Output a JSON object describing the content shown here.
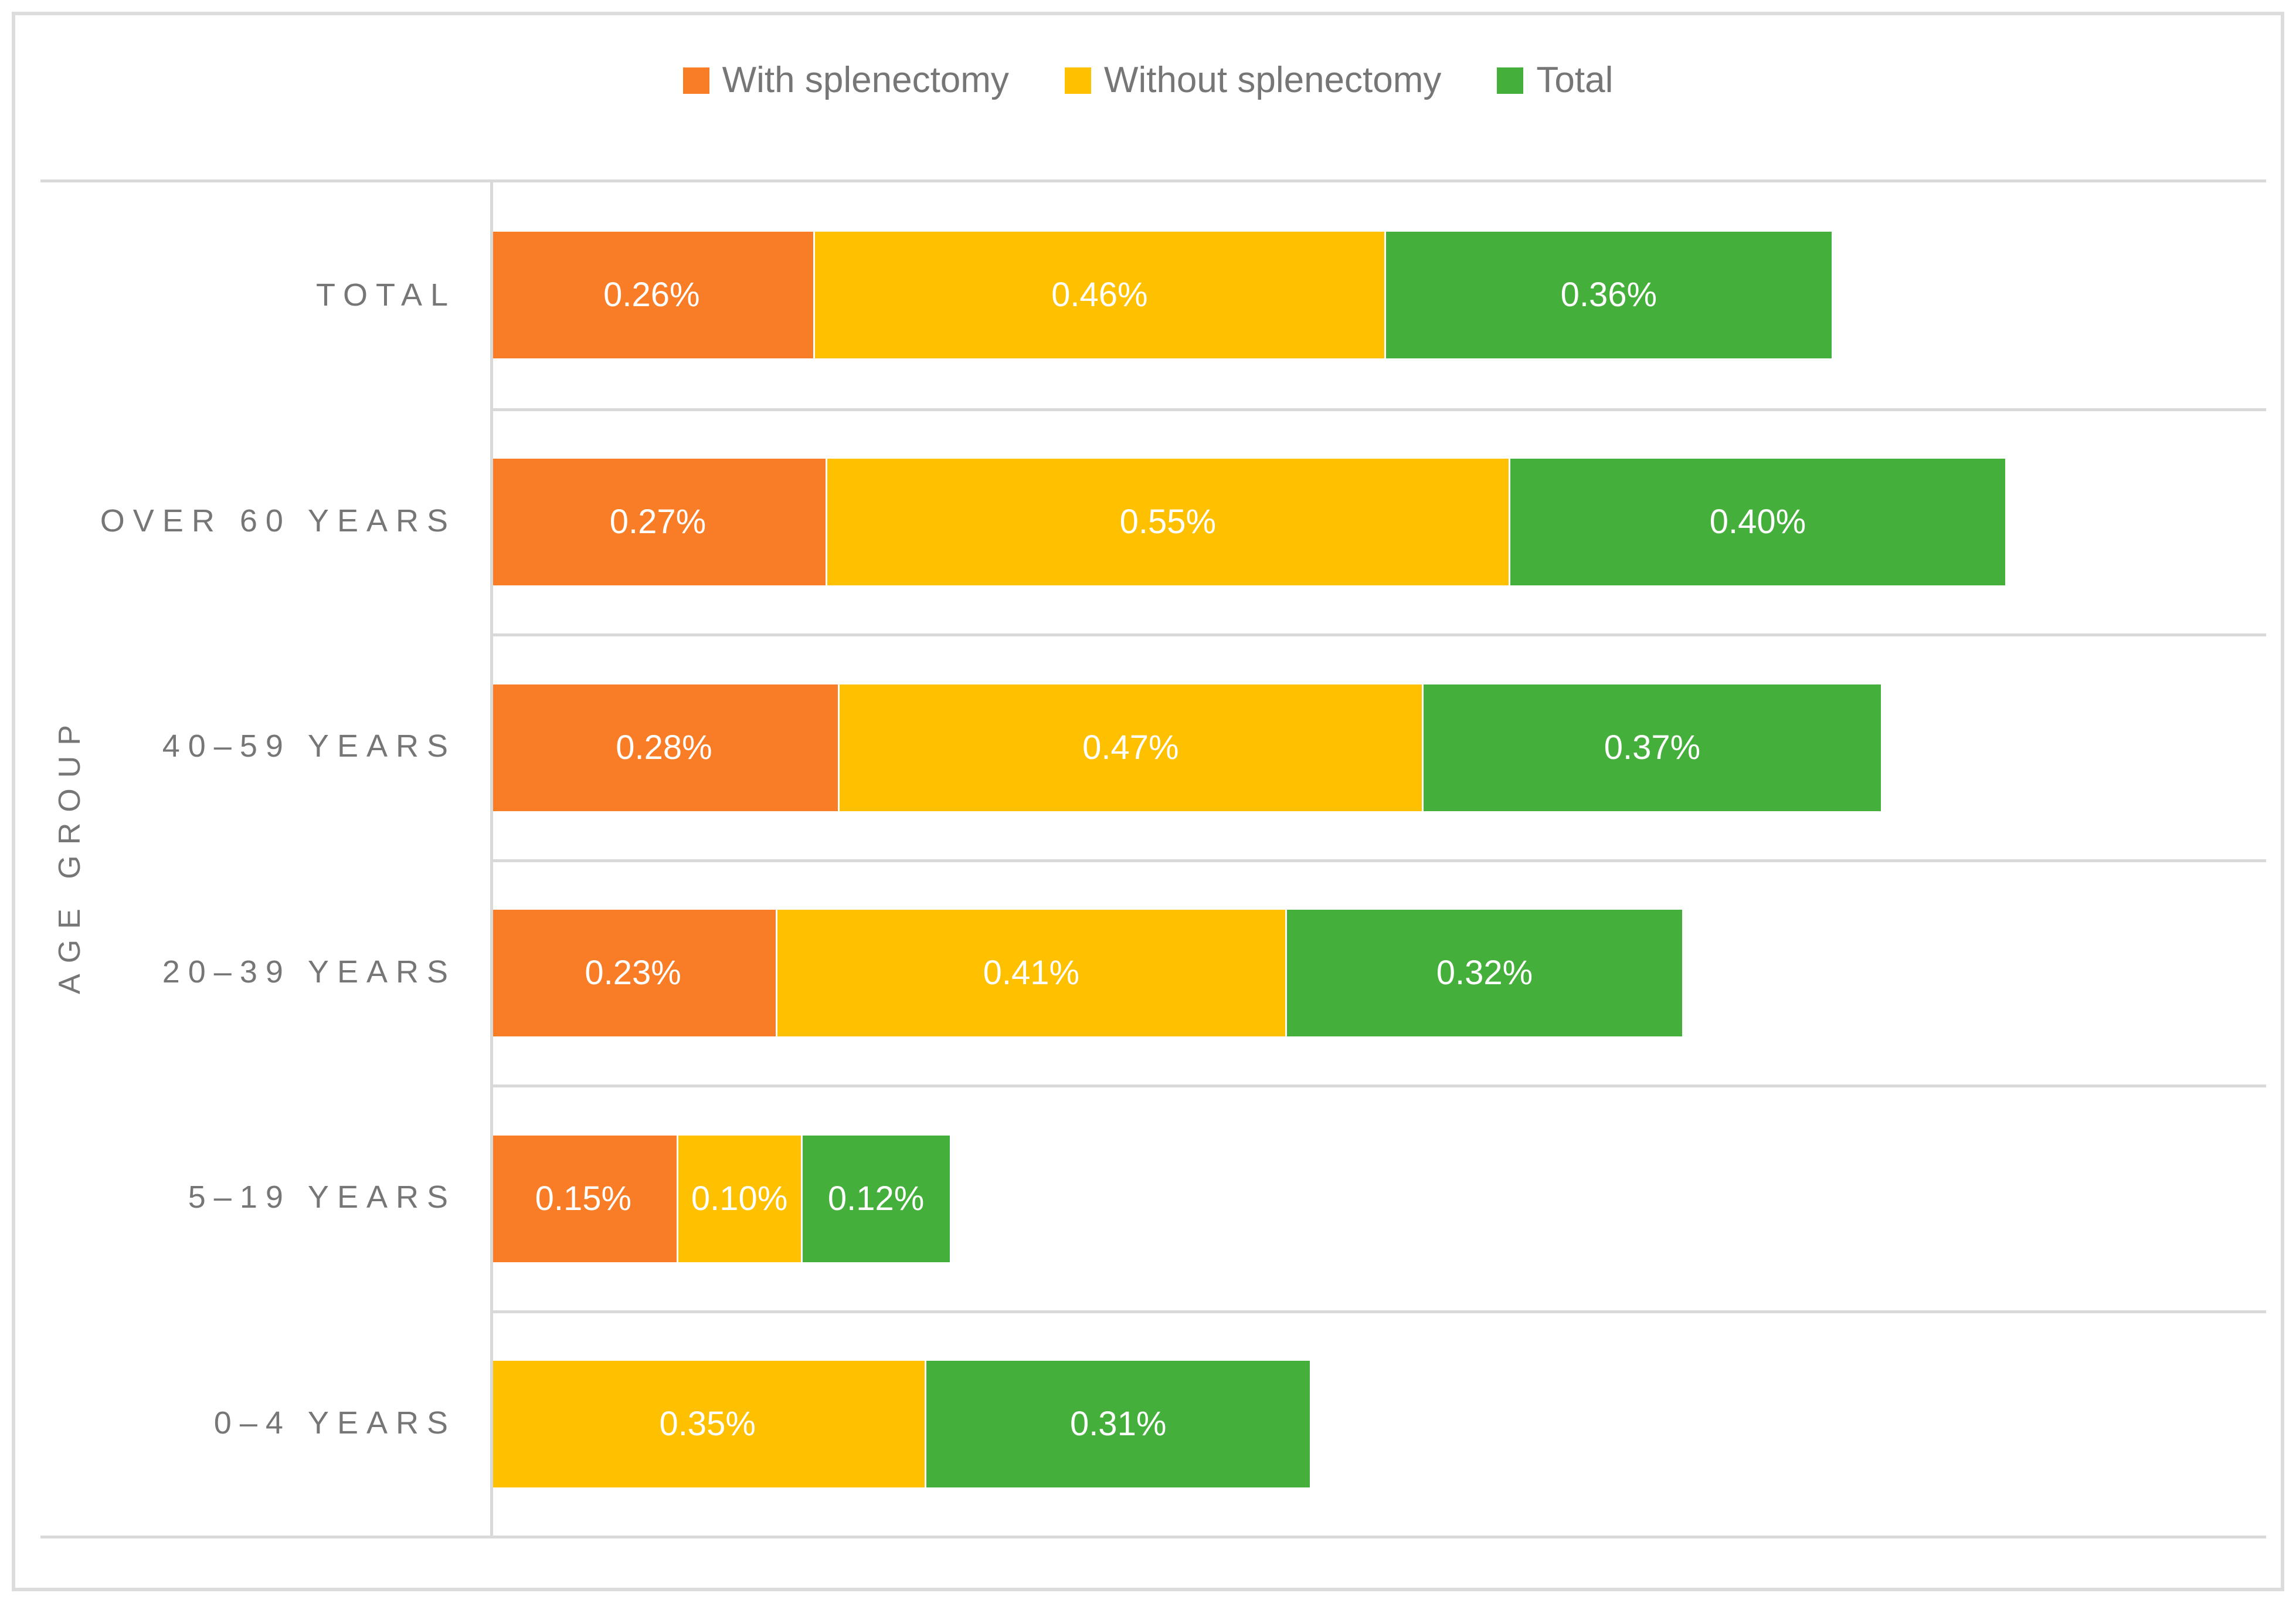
{
  "figure": {
    "frame_color": "#DCDCDC",
    "grid_color": "#D9D9D9",
    "text_color": "#767676",
    "value_label_color": "#FFFFFF"
  },
  "chart_data": {
    "type": "bar",
    "orientation": "horizontal",
    "stacked": true,
    "title": "",
    "xlabel": "",
    "ylabel": "AGE GROUP",
    "xlim": [
      0,
      1.43
    ],
    "grid": "row-separators-only",
    "legend_position": "top-center",
    "categories": [
      "TOTAL",
      "OVER 60 YEARS",
      "40–59 YEARS",
      "20–39 YEARS",
      "5–19 YEARS",
      "0–4 YEARS"
    ],
    "series": [
      {
        "name": "With splenectomy",
        "color": "#F97C27",
        "values": [
          0.26,
          0.27,
          0.28,
          0.23,
          0.15,
          0
        ],
        "labels": [
          "0.26%",
          "0.27%",
          "0.28%",
          "0.23%",
          "0.15%",
          ""
        ]
      },
      {
        "name": "Without splenectomy",
        "color": "#FFC000",
        "values": [
          0.46,
          0.55,
          0.47,
          0.41,
          0.1,
          0.35
        ],
        "labels": [
          "0.46%",
          "0.55%",
          "0.47%",
          "0.41%",
          "0.10%",
          "0.35%"
        ]
      },
      {
        "name": "Total",
        "color": "#44AF3B",
        "values": [
          0.36,
          0.4,
          0.37,
          0.32,
          0.12,
          0.31
        ],
        "labels": [
          "0.36%",
          "0.40%",
          "0.37%",
          "0.32%",
          "0.12%",
          "0.31%"
        ]
      }
    ]
  }
}
